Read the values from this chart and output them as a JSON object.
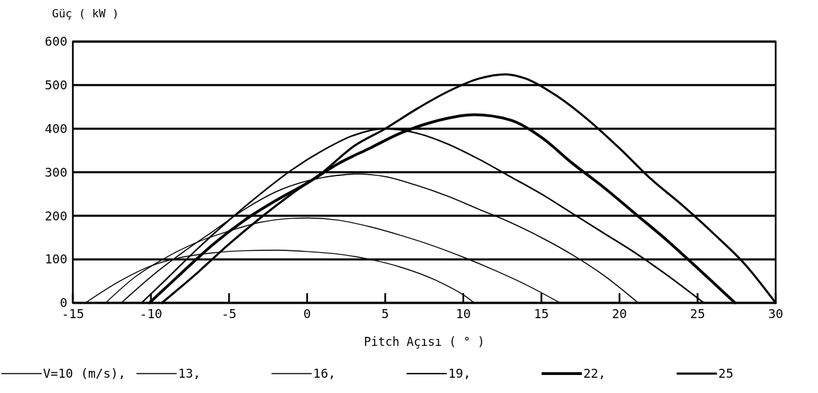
{
  "chart_data": {
    "type": "line",
    "ylabel": "Güç ( kW )",
    "xlabel": "Pitch Açısı ( ° )",
    "xlim": [
      -15,
      30
    ],
    "xticks": [
      -15,
      -10,
      -5,
      0,
      5,
      10,
      15,
      20,
      25,
      30
    ],
    "ylim": [
      0,
      600
    ],
    "yticks": [
      0,
      100,
      200,
      300,
      400,
      500,
      600
    ],
    "grid": "y",
    "legend": "bottom",
    "marker": "none",
    "line_style": "solid",
    "series": [
      {
        "name": "V=10 (m/s),",
        "color": "#000000",
        "x": [
          -14.2,
          -12,
          -10,
          -8,
          -6,
          -4,
          -2,
          0,
          2,
          4,
          6,
          8.3,
          10.1,
          10.7
        ],
        "values": [
          0,
          50,
          85,
          105,
          115,
          120,
          121,
          118,
          112,
          100,
          82,
          51,
          16,
          0
        ]
      },
      {
        "name": "13,",
        "color": "#000000",
        "x": [
          -12.9,
          -11,
          -9,
          -7,
          -5,
          -3,
          -1,
          0,
          2,
          4,
          6,
          8,
          10,
          12,
          14,
          16.2
        ],
        "values": [
          0,
          60,
          105,
          140,
          165,
          185,
          194,
          195,
          190,
          175,
          155,
          132,
          105,
          75,
          42,
          0
        ]
      },
      {
        "name": "16,",
        "color": "#000000",
        "x": [
          -11.9,
          -10,
          -8,
          -6,
          -4,
          -2,
          0,
          2,
          3.2,
          5,
          7,
          9,
          11,
          13,
          15,
          17,
          19,
          21.2
        ],
        "values": [
          0,
          60,
          115,
          165,
          215,
          255,
          280,
          293,
          296,
          290,
          270,
          245,
          215,
          185,
          150,
          110,
          63,
          0
        ]
      },
      {
        "name": "19,",
        "color": "#000000",
        "x": [
          -10.6,
          -9,
          -7,
          -5,
          -3,
          -1,
          1,
          3,
          5,
          7,
          9,
          11,
          13,
          15,
          17,
          19,
          21,
          23,
          25.4
        ],
        "values": [
          0,
          55,
          125,
          190,
          250,
          305,
          350,
          385,
          400,
          390,
          365,
          330,
          290,
          250,
          205,
          160,
          115,
          65,
          0
        ]
      },
      {
        "name": "22,",
        "color": "#000000",
        "x": [
          -10.1,
          -8,
          -6,
          -4,
          -2,
          0,
          2,
          4,
          6,
          8,
          10.7,
          13,
          15,
          17,
          19,
          21,
          23,
          25,
          27.4
        ],
        "values": [
          0,
          70,
          135,
          190,
          235,
          275,
          320,
          355,
          390,
          415,
          432,
          420,
          380,
          320,
          265,
          205,
          145,
          80,
          0
        ]
      },
      {
        "name": "25",
        "color": "#000000",
        "x": [
          -9.3,
          -7,
          -5,
          -3,
          -1,
          1,
          3,
          5,
          7,
          9,
          11,
          12.7,
          14,
          16,
          18,
          20,
          22,
          24,
          26,
          28,
          30
        ],
        "values": [
          0,
          70,
          135,
          195,
          250,
          300,
          360,
          400,
          445,
          485,
          515,
          525,
          515,
          475,
          420,
          355,
          285,
          225,
          160,
          90,
          0
        ]
      }
    ]
  }
}
